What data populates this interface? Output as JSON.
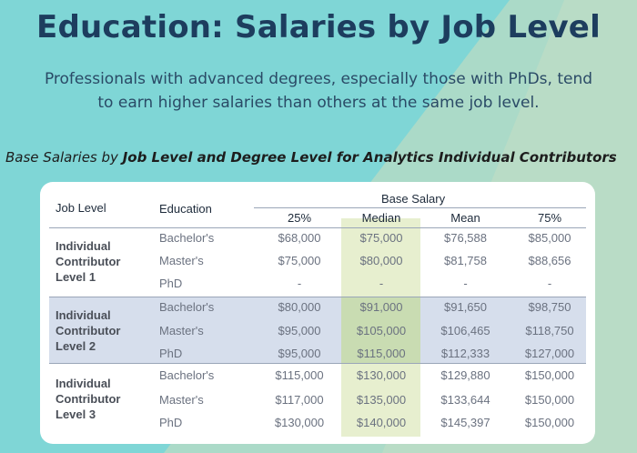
{
  "title": "Education: Salaries by Job Level",
  "subtitle_line1": "Professionals with advanced degrees, especially those with PhDs, tend",
  "subtitle_line2": "to earn higher salaries than others at the same job level.",
  "caption_prefix": "Base Salaries by ",
  "caption_bold": "Job Level and Degree Level for Analytics Individual Contributors",
  "table": {
    "header_job_level": "Job Level",
    "header_education": "Education",
    "header_base_salary": "Base Salary",
    "columns": [
      "25%",
      "Median",
      "Mean",
      "75%"
    ],
    "groups": [
      {
        "level": [
          "Individual",
          "Contributor",
          "Level 1"
        ],
        "rows": [
          {
            "education": "Bachelor's",
            "values": [
              "$68,000",
              "$75,000",
              "$76,588",
              "$85,000"
            ]
          },
          {
            "education": "Master's",
            "values": [
              "$75,000",
              "$80,000",
              "$81,758",
              "$88,656"
            ]
          },
          {
            "education": "PhD",
            "values": [
              "-",
              "-",
              "-",
              "-"
            ]
          }
        ]
      },
      {
        "level": [
          "Individual",
          "Contributor",
          "Level 2"
        ],
        "rows": [
          {
            "education": "Bachelor's",
            "values": [
              "$80,000",
              "$91,000",
              "$91,650",
              "$98,750"
            ]
          },
          {
            "education": "Master's",
            "values": [
              "$95,000",
              "$105,000",
              "$106,465",
              "$118,750"
            ]
          },
          {
            "education": "PhD",
            "values": [
              "$95,000",
              "$115,000",
              "$112,333",
              "$127,000"
            ]
          }
        ]
      },
      {
        "level": [
          "Individual",
          "Contributor",
          "Level 3"
        ],
        "rows": [
          {
            "education": "Bachelor's",
            "values": [
              "$115,000",
              "$130,000",
              "$129,880",
              "$150,000"
            ]
          },
          {
            "education": "Master's",
            "values": [
              "$117,000",
              "$135,000",
              "$133,644",
              "$150,000"
            ]
          },
          {
            "education": "PhD",
            "values": [
              "$130,000",
              "$140,000",
              "$145,397",
              "$150,000"
            ]
          }
        ]
      }
    ]
  },
  "colors": {
    "background": "#7fd6d6",
    "background_shape": "#b8dcc4",
    "title": "#1d3d5e",
    "median_highlight": "#e7efcf",
    "level2_highlight": "#d6deec"
  }
}
